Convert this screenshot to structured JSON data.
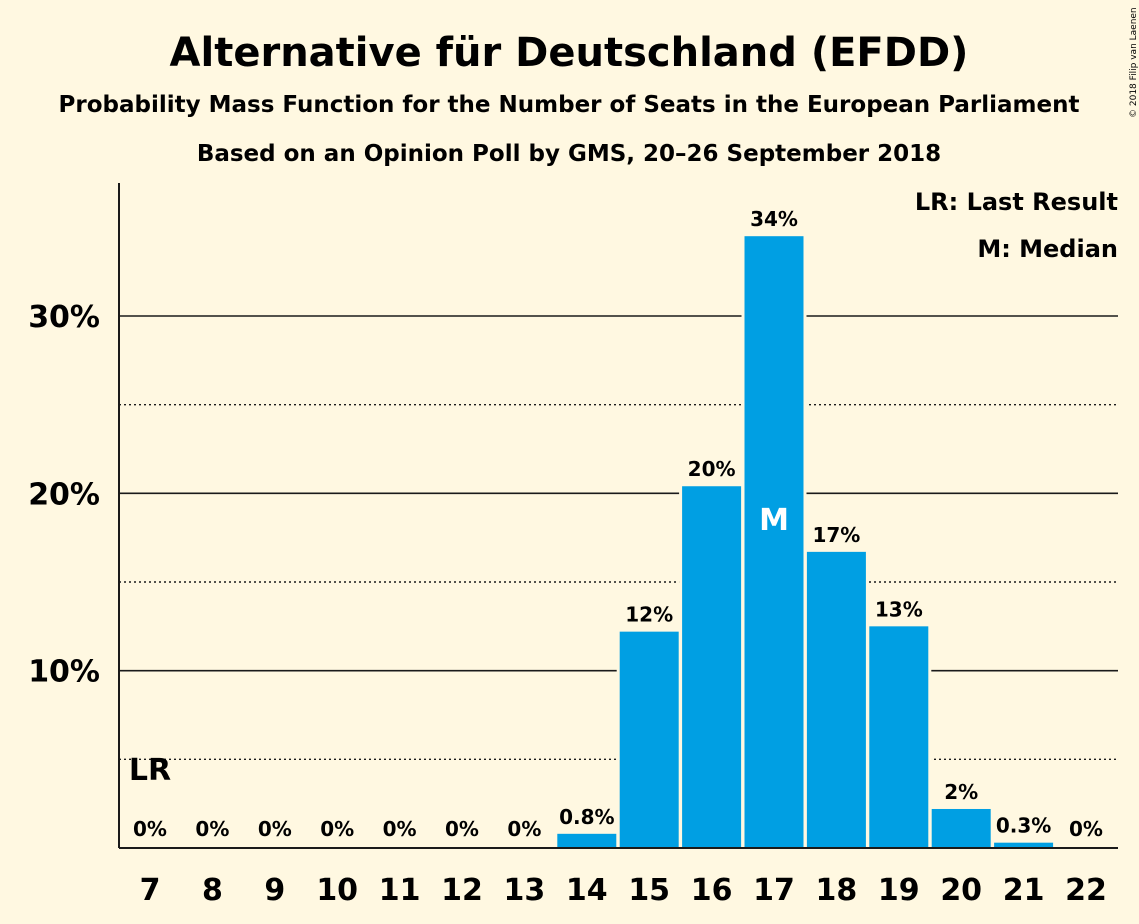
{
  "chart_data": {
    "type": "bar",
    "title": "Alternative für Deutschland (EFDD)",
    "subtitle": "Probability Mass Function for the Number of Seats in the European Parliament",
    "subtitle2": "Based on an Opinion Poll by GMS, 20–26 September 2018",
    "copyright": "© 2018 Filip van Laenen",
    "categories": [
      "7",
      "8",
      "9",
      "10",
      "11",
      "12",
      "13",
      "14",
      "15",
      "16",
      "17",
      "18",
      "19",
      "20",
      "21",
      "22"
    ],
    "values": [
      0,
      0,
      0,
      0,
      0,
      0,
      0,
      0.8,
      12.2,
      20.4,
      34.5,
      16.7,
      12.5,
      2.2,
      0.3,
      0
    ],
    "value_labels": [
      "0%",
      "0%",
      "0%",
      "0%",
      "0%",
      "0%",
      "0%",
      "0.8%",
      "12%",
      "20%",
      "34%",
      "17%",
      "13%",
      "2%",
      "0.3%",
      "0%"
    ],
    "ylim": [
      0,
      37.5
    ],
    "y_major_ticks": [
      10,
      20,
      30
    ],
    "y_major_tick_labels": [
      "10%",
      "20%",
      "30%"
    ],
    "y_minor_gridlines": [
      5,
      15,
      25
    ],
    "bar_color": "#009FE3",
    "background_color": "#FFF8E1",
    "last_result": {
      "category": "7",
      "marker": "LR"
    },
    "median": {
      "category": "17",
      "marker": "M"
    },
    "legend": {
      "position": "top-right",
      "items": [
        "LR: Last Result",
        "M: Median"
      ]
    }
  }
}
